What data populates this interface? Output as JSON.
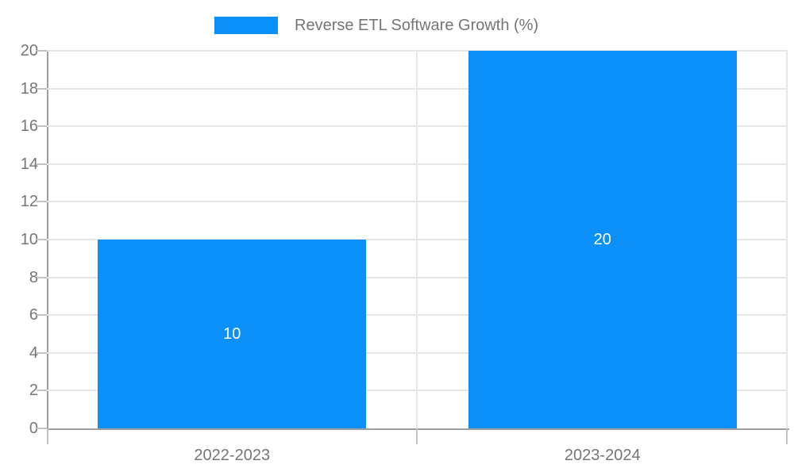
{
  "chart": {
    "legend": {
      "label": "Reverse ETL Software Growth (%)"
    }
  },
  "colors": {
    "bar": "#0a90f8",
    "grid": "#e6e6e6",
    "axis": "#9e9e9e",
    "tick": "#c2c2c2",
    "label_text": "#757575",
    "bar_label_text": "#ffffff",
    "background": "#ffffff"
  },
  "chart_data": {
    "type": "bar",
    "title": "Reverse ETL Software Growth (%)",
    "categories": [
      "2022-2023",
      "2023-2024"
    ],
    "series": [
      {
        "name": "Reverse ETL Software Growth (%)",
        "values": [
          10,
          20
        ]
      }
    ],
    "bar_value_labels": [
      "10",
      "20"
    ],
    "xlabel": "",
    "ylabel": "",
    "ylim": [
      0,
      20
    ],
    "ytick_step": 2,
    "ytick_labels": [
      "0",
      "2",
      "4",
      "6",
      "8",
      "10",
      "12",
      "14",
      "16",
      "18",
      "20"
    ],
    "grid": true,
    "legend_position": "top-center",
    "orientation": "vertical"
  }
}
